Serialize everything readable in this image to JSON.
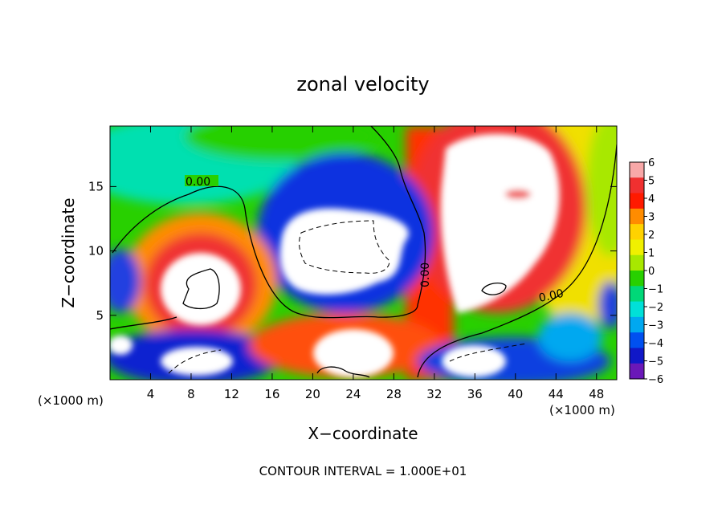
{
  "chart_data": {
    "type": "heatmap",
    "title": "zonal velocity",
    "xlabel": "X−coordinate",
    "ylabel": "Z−coordinate",
    "x_unit": "(×1000 m)",
    "y_unit": "(×1000 m)",
    "xlim": [
      0,
      50
    ],
    "ylim": [
      0,
      19.7
    ],
    "x_ticks": [
      4,
      8,
      12,
      16,
      20,
      24,
      28,
      32,
      36,
      40,
      44,
      48
    ],
    "y_ticks": [
      5,
      10,
      15
    ],
    "colorbar": {
      "min": -6,
      "max": 6,
      "ticks": [
        "6",
        "5",
        "4",
        "3",
        "2",
        "1",
        "0",
        "−1",
        "−2",
        "−3",
        "−4",
        "−5",
        "−6"
      ],
      "colors": [
        "#f8a8a8",
        "#f03030",
        "#ff1a00",
        "#ff8c00",
        "#ffd200",
        "#f0f000",
        "#a8e800",
        "#28d000",
        "#00d878",
        "#00e0d8",
        "#00a8f0",
        "#0050f0",
        "#1018c8",
        "#6a18b8"
      ]
    },
    "contour_labels": [
      "0.00",
      "0.00",
      "0.00"
    ],
    "caption": "CONTOUR INTERVAL = 1.000E+01"
  }
}
